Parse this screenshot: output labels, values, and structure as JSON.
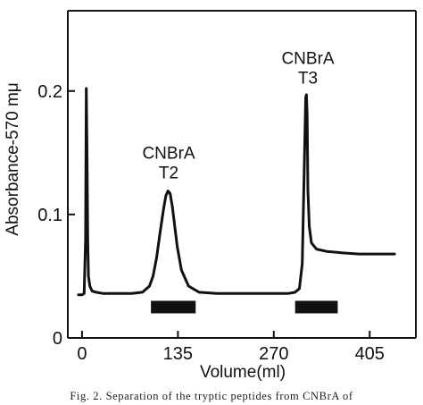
{
  "chart_data": {
    "type": "line",
    "title": "",
    "xlabel": "Volume(ml)",
    "ylabel": "Absorbance-570 mμ",
    "xlim": [
      -20,
      470
    ],
    "ylim": [
      0,
      0.265
    ],
    "x_ticks": [
      0,
      135,
      270,
      405
    ],
    "x_tick_labels": [
      "0",
      "135",
      "270",
      "405"
    ],
    "y_ticks": [
      0,
      0.1,
      0.2
    ],
    "y_tick_labels": [
      "0",
      "0.1",
      "0.2"
    ],
    "grid": false,
    "legend": "none",
    "series": [
      {
        "x": [
          -5,
          0,
          3,
          5,
          6,
          7,
          8,
          9,
          11,
          14,
          20,
          30,
          50,
          70,
          85,
          95,
          100,
          105,
          110,
          115,
          118,
          121,
          124,
          127,
          130,
          134,
          140,
          150,
          165,
          190,
          220,
          250,
          275,
          290,
          300,
          306,
          310,
          313,
          315,
          316,
          317,
          318,
          320,
          323,
          330,
          345,
          365,
          390,
          400,
          420,
          440
        ],
        "values": [
          0.035,
          0.035,
          0.036,
          0.08,
          0.202,
          0.15,
          0.08,
          0.05,
          0.042,
          0.038,
          0.037,
          0.036,
          0.036,
          0.036,
          0.037,
          0.042,
          0.05,
          0.065,
          0.086,
          0.105,
          0.115,
          0.119,
          0.117,
          0.107,
          0.093,
          0.074,
          0.055,
          0.042,
          0.037,
          0.036,
          0.036,
          0.036,
          0.036,
          0.036,
          0.037,
          0.04,
          0.06,
          0.14,
          0.195,
          0.197,
          0.18,
          0.12,
          0.09,
          0.077,
          0.072,
          0.07,
          0.069,
          0.068,
          0.068,
          0.068,
          0.068
        ]
      }
    ],
    "annotations": [
      {
        "lines": [
          "CNBrA",
          "T2"
        ],
        "x": 122,
        "y": 0.145
      },
      {
        "lines": [
          "CNBrA",
          "T3"
        ],
        "x": 318,
        "y": 0.222
      }
    ],
    "pooled_fractions": [
      {
        "x_start": 97,
        "x_end": 160,
        "y": 0.025
      },
      {
        "x_start": 300,
        "x_end": 360,
        "y": 0.025
      }
    ]
  },
  "caption": "Fig. 2. Separation of the tryptic peptides from CNBrA of"
}
